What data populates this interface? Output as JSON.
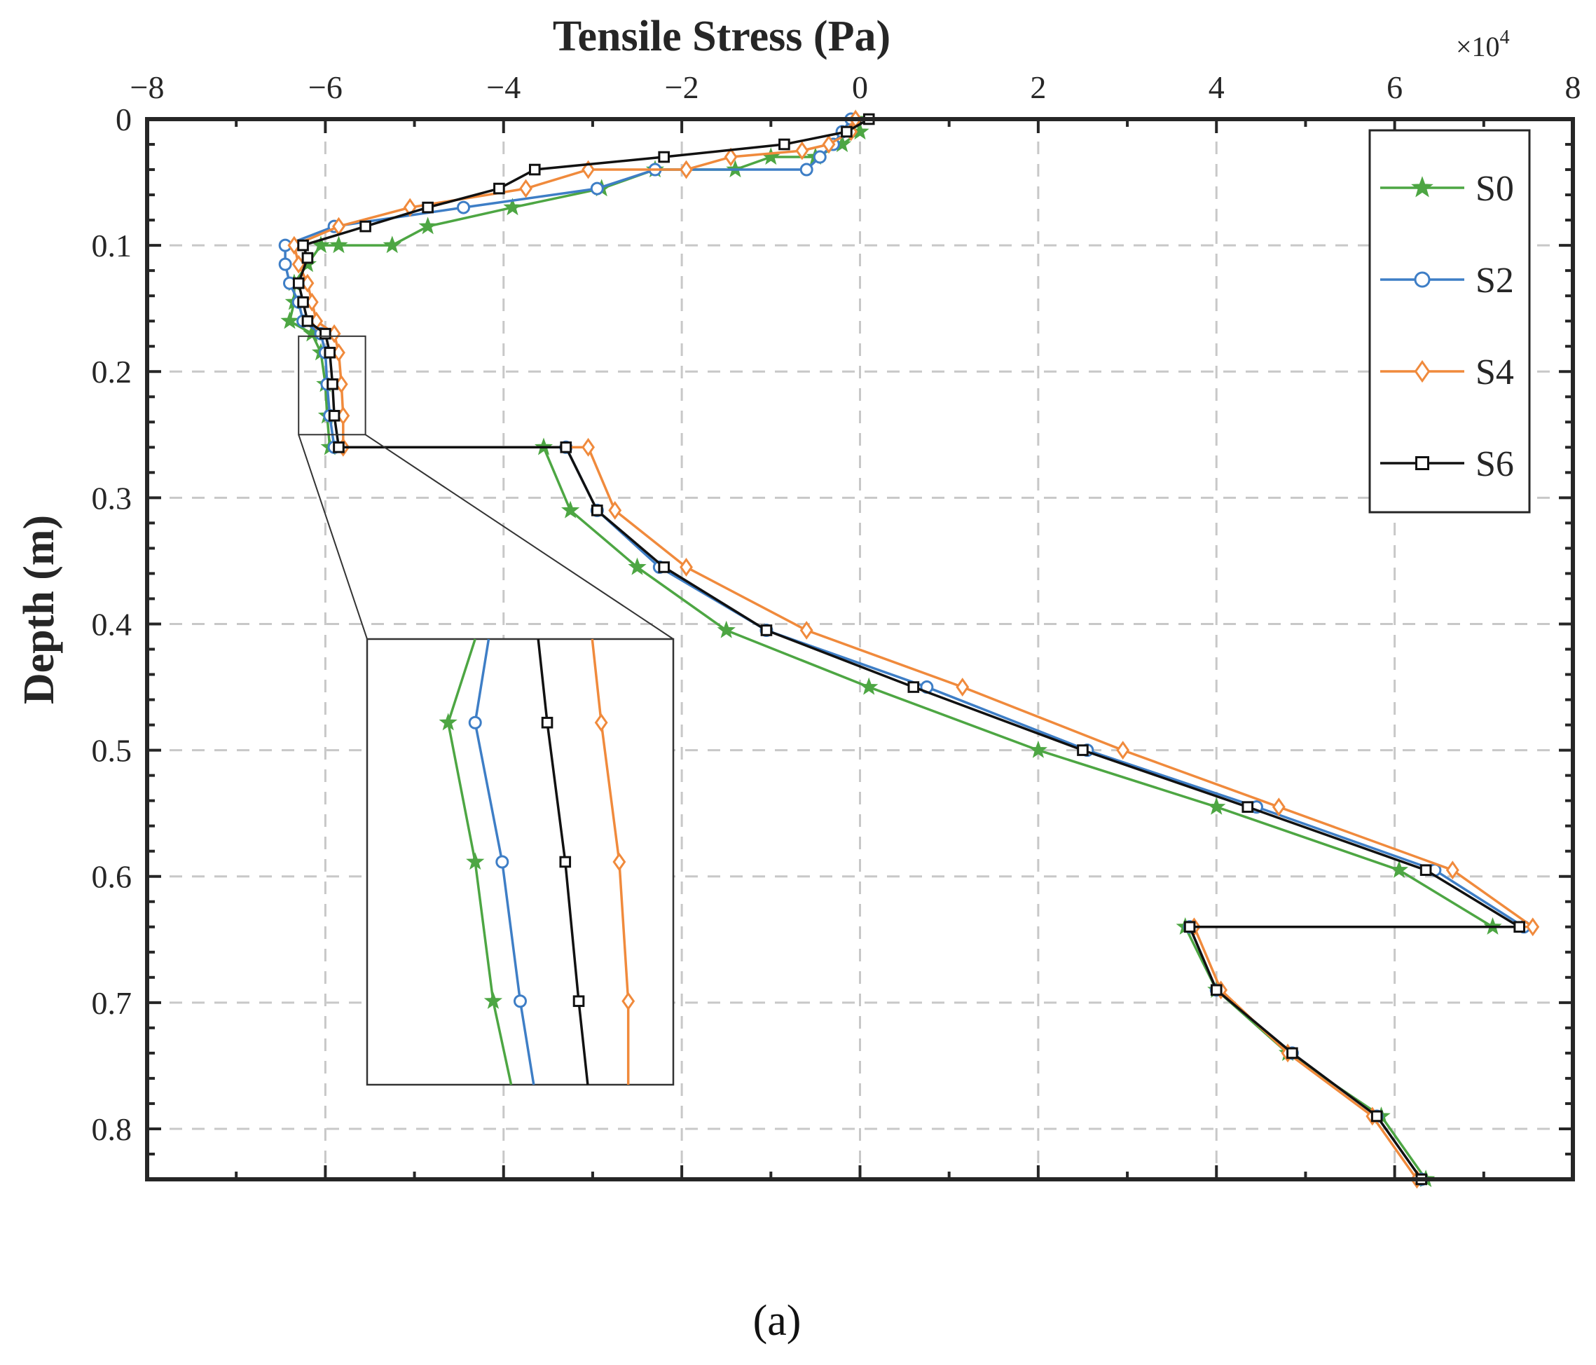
{
  "chart_data": {
    "type": "line",
    "title": "Tensile Stress (Pa)",
    "xlabel": "Tensile Stress (Pa)",
    "ylabel": "Depth (m)",
    "x_exponent_label": "×10",
    "x_exponent_power": "4",
    "x_scale": 10000,
    "xlim": [
      -8,
      8
    ],
    "ylim": [
      0,
      0.84
    ],
    "y_reversed": true,
    "x_axis_position": "top",
    "xticks": [
      -8,
      -6,
      -4,
      -2,
      0,
      2,
      4,
      6,
      8
    ],
    "xtick_labels": [
      "−8",
      "−6",
      "−4",
      "−2",
      "0",
      "2",
      "4",
      "6",
      "8"
    ],
    "yticks": [
      0,
      0.1,
      0.2,
      0.3,
      0.4,
      0.5,
      0.6,
      0.7,
      0.8
    ],
    "ytick_labels": [
      "0",
      "0.1",
      "0.2",
      "0.3",
      "0.4",
      "0.5",
      "0.6",
      "0.7",
      "0.8"
    ],
    "grid": true,
    "legend_position": "top-right",
    "caption": "(a)",
    "series": [
      {
        "name": "S0",
        "color": "#4da643",
        "marker": "star",
        "points": [
          [
            -0.05,
            0.0
          ],
          [
            0.0,
            0.01
          ],
          [
            -0.2,
            0.02
          ],
          [
            -0.5,
            0.03
          ],
          [
            -1.0,
            0.03
          ],
          [
            -1.4,
            0.04
          ],
          [
            -2.3,
            0.04
          ],
          [
            -2.9,
            0.055
          ],
          [
            -3.9,
            0.07
          ],
          [
            -4.85,
            0.085
          ],
          [
            -5.25,
            0.1
          ],
          [
            -5.85,
            0.1
          ],
          [
            -6.05,
            0.1
          ],
          [
            -6.2,
            0.115
          ],
          [
            -6.35,
            0.13
          ],
          [
            -6.35,
            0.145
          ],
          [
            -6.4,
            0.16
          ],
          [
            -6.15,
            0.17
          ],
          [
            -6.05,
            0.185
          ],
          [
            -6.0,
            0.21
          ],
          [
            -5.98,
            0.235
          ],
          [
            -5.95,
            0.26
          ],
          [
            -3.55,
            0.26
          ],
          [
            -3.25,
            0.31
          ],
          [
            -2.5,
            0.355
          ],
          [
            -1.5,
            0.405
          ],
          [
            0.1,
            0.45
          ],
          [
            2.0,
            0.5
          ],
          [
            4.0,
            0.545
          ],
          [
            6.05,
            0.595
          ],
          [
            7.1,
            0.64
          ],
          [
            3.65,
            0.64
          ],
          [
            4.0,
            0.69
          ],
          [
            4.8,
            0.74
          ],
          [
            5.85,
            0.79
          ],
          [
            6.35,
            0.84
          ]
        ]
      },
      {
        "name": "S2",
        "color": "#3e7ec6",
        "marker": "circle",
        "points": [
          [
            -0.1,
            0.0
          ],
          [
            -0.2,
            0.01
          ],
          [
            -0.3,
            0.02
          ],
          [
            -0.45,
            0.03
          ],
          [
            -0.6,
            0.04
          ],
          [
            -2.3,
            0.04
          ],
          [
            -2.95,
            0.055
          ],
          [
            -4.45,
            0.07
          ],
          [
            -5.9,
            0.085
          ],
          [
            -6.45,
            0.1
          ],
          [
            -6.45,
            0.115
          ],
          [
            -6.4,
            0.13
          ],
          [
            -6.3,
            0.145
          ],
          [
            -6.25,
            0.16
          ],
          [
            -6.05,
            0.17
          ],
          [
            -6.0,
            0.185
          ],
          [
            -5.98,
            0.21
          ],
          [
            -5.95,
            0.235
          ],
          [
            -5.9,
            0.26
          ],
          [
            -3.3,
            0.26
          ],
          [
            -2.95,
            0.31
          ],
          [
            -2.25,
            0.355
          ],
          [
            -1.05,
            0.405
          ],
          [
            0.75,
            0.45
          ],
          [
            2.55,
            0.5
          ],
          [
            4.45,
            0.545
          ],
          [
            6.45,
            0.595
          ],
          [
            7.45,
            0.64
          ],
          [
            3.7,
            0.64
          ],
          [
            4.0,
            0.69
          ],
          [
            4.85,
            0.74
          ],
          [
            5.8,
            0.79
          ],
          [
            6.3,
            0.84
          ]
        ]
      },
      {
        "name": "S4",
        "color": "#f08a3c",
        "marker": "diamond",
        "points": [
          [
            -0.05,
            0.0
          ],
          [
            -0.1,
            0.01
          ],
          [
            -0.35,
            0.02
          ],
          [
            -0.65,
            0.025
          ],
          [
            -1.45,
            0.03
          ],
          [
            -1.95,
            0.04
          ],
          [
            -3.05,
            0.04
          ],
          [
            -3.75,
            0.055
          ],
          [
            -5.05,
            0.07
          ],
          [
            -5.85,
            0.085
          ],
          [
            -6.35,
            0.1
          ],
          [
            -6.3,
            0.115
          ],
          [
            -6.2,
            0.13
          ],
          [
            -6.15,
            0.145
          ],
          [
            -6.1,
            0.16
          ],
          [
            -5.9,
            0.17
          ],
          [
            -5.85,
            0.185
          ],
          [
            -5.82,
            0.21
          ],
          [
            -5.8,
            0.235
          ],
          [
            -5.8,
            0.26
          ],
          [
            -3.05,
            0.26
          ],
          [
            -2.75,
            0.31
          ],
          [
            -1.95,
            0.355
          ],
          [
            -0.6,
            0.405
          ],
          [
            1.15,
            0.45
          ],
          [
            2.95,
            0.5
          ],
          [
            4.7,
            0.545
          ],
          [
            6.65,
            0.595
          ],
          [
            7.55,
            0.64
          ],
          [
            3.75,
            0.64
          ],
          [
            4.05,
            0.69
          ],
          [
            4.8,
            0.74
          ],
          [
            5.75,
            0.79
          ],
          [
            6.25,
            0.84
          ]
        ]
      },
      {
        "name": "S6",
        "color": "#111111",
        "marker": "square",
        "points": [
          [
            0.1,
            0.0
          ],
          [
            -0.15,
            0.01
          ],
          [
            -0.85,
            0.02
          ],
          [
            -2.2,
            0.03
          ],
          [
            -3.65,
            0.04
          ],
          [
            -4.05,
            0.055
          ],
          [
            -4.85,
            0.07
          ],
          [
            -5.55,
            0.085
          ],
          [
            -6.25,
            0.1
          ],
          [
            -6.2,
            0.11
          ],
          [
            -6.3,
            0.13
          ],
          [
            -6.25,
            0.145
          ],
          [
            -6.2,
            0.16
          ],
          [
            -6.0,
            0.17
          ],
          [
            -5.95,
            0.185
          ],
          [
            -5.92,
            0.21
          ],
          [
            -5.9,
            0.235
          ],
          [
            -5.85,
            0.26
          ],
          [
            -3.3,
            0.26
          ],
          [
            -2.95,
            0.31
          ],
          [
            -2.2,
            0.355
          ],
          [
            -1.05,
            0.405
          ],
          [
            0.6,
            0.45
          ],
          [
            2.5,
            0.5
          ],
          [
            4.35,
            0.545
          ],
          [
            6.35,
            0.595
          ],
          [
            7.4,
            0.64
          ],
          [
            3.7,
            0.64
          ],
          [
            4.0,
            0.69
          ],
          [
            4.85,
            0.74
          ],
          [
            5.8,
            0.79
          ],
          [
            6.3,
            0.84
          ]
        ]
      }
    ],
    "inset": {
      "description_range_x": [
        -6.3,
        -5.55
      ],
      "description_range_y": [
        0.17,
        0.25
      ],
      "series": [
        {
          "name": "S0",
          "points": [
            [
              -6.0,
              0.17
            ],
            [
              -6.03,
              0.185
            ],
            [
              -6.0,
              0.21
            ],
            [
              -5.98,
              0.235
            ],
            [
              -5.96,
              0.25
            ]
          ]
        },
        {
          "name": "S2",
          "points": [
            [
              -5.985,
              0.17
            ],
            [
              -6.0,
              0.185
            ],
            [
              -5.97,
              0.21
            ],
            [
              -5.95,
              0.235
            ],
            [
              -5.935,
              0.25
            ]
          ]
        },
        {
          "name": "S6",
          "points": [
            [
              -5.93,
              0.17
            ],
            [
              -5.92,
              0.185
            ],
            [
              -5.9,
              0.21
            ],
            [
              -5.885,
              0.235
            ],
            [
              -5.875,
              0.25
            ]
          ]
        },
        {
          "name": "S4",
          "points": [
            [
              -5.87,
              0.17
            ],
            [
              -5.86,
              0.185
            ],
            [
              -5.84,
              0.21
            ],
            [
              -5.83,
              0.235
            ],
            [
              -5.83,
              0.25
            ]
          ]
        }
      ]
    }
  }
}
